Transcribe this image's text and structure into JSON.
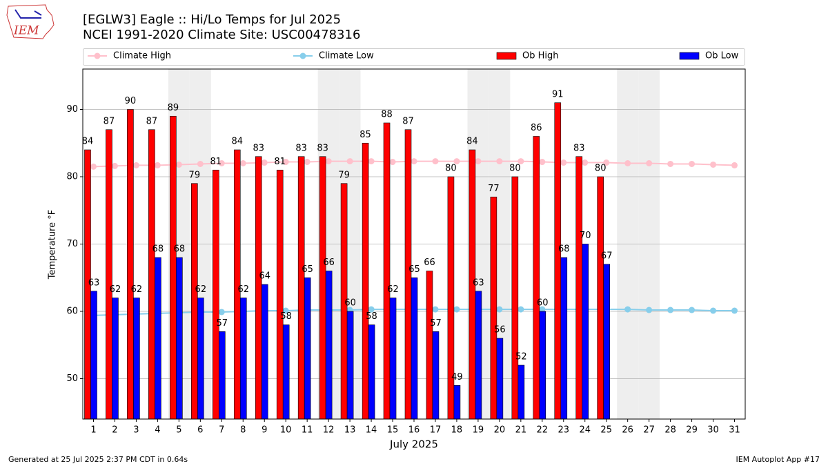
{
  "chart_data": {
    "type": "bar",
    "logo_text": "IEM",
    "title": "[EGLW3] Eagle :: Hi/Lo Temps for Jul 2025",
    "subtitle": "NCEI 1991-2020 Climate Site: USC00478316",
    "x_label": "July 2025",
    "y_label": "Temperature °F",
    "footer_left": "Generated at 25 Jul 2025 2:37 PM CDT in 0.64s",
    "footer_right": "IEM Autoplot App #17",
    "categories": [
      "1",
      "2",
      "3",
      "4",
      "5",
      "6",
      "7",
      "8",
      "9",
      "10",
      "11",
      "12",
      "13",
      "14",
      "15",
      "16",
      "17",
      "18",
      "19",
      "20",
      "21",
      "22",
      "23",
      "24",
      "25",
      "26",
      "27",
      "28",
      "29",
      "30",
      "31"
    ],
    "shaded_days": [
      5,
      6,
      12,
      13,
      19,
      20,
      26,
      27
    ],
    "shade_color": "#eeeeee",
    "ylim": [
      44,
      96
    ],
    "yticks": [
      50,
      60,
      70,
      80,
      90
    ],
    "grid": true,
    "series": [
      {
        "name": "Climate High",
        "type": "line",
        "color": "#ffc0cb",
        "values": [
          81.5,
          81.6,
          81.7,
          81.7,
          81.8,
          81.9,
          82.0,
          82.0,
          82.1,
          82.2,
          82.2,
          82.3,
          82.3,
          82.3,
          82.2,
          82.3,
          82.3,
          82.3,
          82.3,
          82.3,
          82.3,
          82.2,
          82.1,
          82.1,
          82.1,
          82.0,
          82.0,
          81.9,
          81.9,
          81.8,
          81.7
        ]
      },
      {
        "name": "Climate Low",
        "type": "line",
        "color": "#87ceeb",
        "values": [
          59.4,
          59.5,
          59.6,
          59.7,
          59.8,
          59.9,
          59.9,
          60.0,
          60.1,
          60.1,
          60.2,
          60.2,
          60.2,
          60.3,
          60.3,
          60.3,
          60.3,
          60.3,
          60.3,
          60.3,
          60.3,
          60.3,
          60.3,
          60.3,
          60.3,
          60.3,
          60.2,
          60.2,
          60.2,
          60.1,
          60.1
        ]
      },
      {
        "name": "Ob High",
        "type": "bar",
        "color": "#ff0000",
        "values": [
          84,
          87,
          90,
          87,
          89,
          79,
          81,
          84,
          83,
          81,
          83,
          83,
          79,
          85,
          88,
          87,
          66,
          80,
          84,
          77,
          80,
          86,
          91,
          83,
          80,
          null,
          null,
          null,
          null,
          null,
          null
        ]
      },
      {
        "name": "Ob Low",
        "type": "bar",
        "color": "#0000ff",
        "values": [
          63,
          62,
          62,
          68,
          68,
          62,
          57,
          62,
          64,
          58,
          65,
          66,
          60,
          58,
          62,
          65,
          57,
          49,
          63,
          56,
          52,
          60,
          68,
          70,
          67,
          null,
          null,
          null,
          null,
          null,
          null
        ]
      }
    ]
  }
}
